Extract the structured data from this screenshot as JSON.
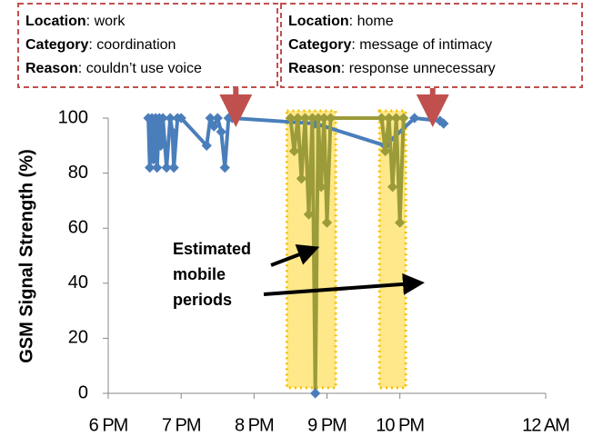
{
  "chart_data": {
    "type": "line",
    "y_label": "GSM Signal Strength (%)",
    "xlim": [
      18,
      24
    ],
    "xticks": [
      {
        "value": 18,
        "label": "6 PM"
      },
      {
        "value": 19,
        "label": "7 PM"
      },
      {
        "value": 20,
        "label": "8 PM"
      },
      {
        "value": 21,
        "label": "9 PM"
      },
      {
        "value": 22,
        "label": "10 PM"
      },
      {
        "value": 24,
        "label": "12 AM"
      }
    ],
    "ylim": [
      0,
      100
    ],
    "yticks": [
      0,
      20,
      40,
      60,
      80,
      100
    ],
    "series": [
      {
        "color": "#4a7ebb",
        "x": [
          18.55,
          18.57,
          18.6,
          18.62,
          18.65,
          18.67,
          18.7,
          18.72,
          18.75,
          18.8,
          18.85,
          18.88,
          18.9,
          18.95,
          19.0,
          19.35,
          19.4,
          19.45,
          19.5,
          19.55,
          19.6,
          19.65,
          19.7,
          20.84,
          21.8,
          22.2,
          22.55,
          22.6
        ],
        "values": [
          100,
          82,
          100,
          85,
          100,
          82,
          100,
          90,
          100,
          82,
          100,
          95,
          82,
          100,
          100,
          90,
          100,
          97,
          100,
          95,
          82,
          100,
          100,
          98,
          90,
          100,
          99,
          98
        ]
      },
      {
        "color": "#9b9b3a",
        "x": [
          20.5,
          20.55,
          20.6,
          20.65,
          20.7,
          20.75,
          20.8,
          20.84,
          20.88,
          20.92,
          20.96,
          21.0,
          21.05,
          21.75,
          21.8,
          21.85,
          21.9,
          21.95,
          22.0,
          22.05
        ],
        "values": [
          100,
          88,
          100,
          78,
          100,
          65,
          100,
          0,
          100,
          75,
          100,
          62,
          100,
          100,
          88,
          100,
          75,
          100,
          62,
          100
        ]
      }
    ],
    "mobile_periods": [
      [
        20.45,
        21.12
      ],
      [
        21.72,
        22.08
      ]
    ],
    "mobile_label": [
      "Estimated",
      "mobile",
      "periods"
    ],
    "annotations": [
      {
        "x": 19.75,
        "lines": [
          {
            "key": "Location",
            "text": ": work"
          },
          {
            "key": "Category",
            "text": ": coordination"
          },
          {
            "key": "Reason",
            "text": ": couldn’t use voice"
          }
        ]
      },
      {
        "x": 22.45,
        "lines": [
          {
            "key": "Location",
            "text": ": home"
          },
          {
            "key": "Category",
            "text": ": message of intimacy"
          },
          {
            "key": "Reason",
            "text": ": response unnecessary"
          }
        ]
      }
    ]
  }
}
